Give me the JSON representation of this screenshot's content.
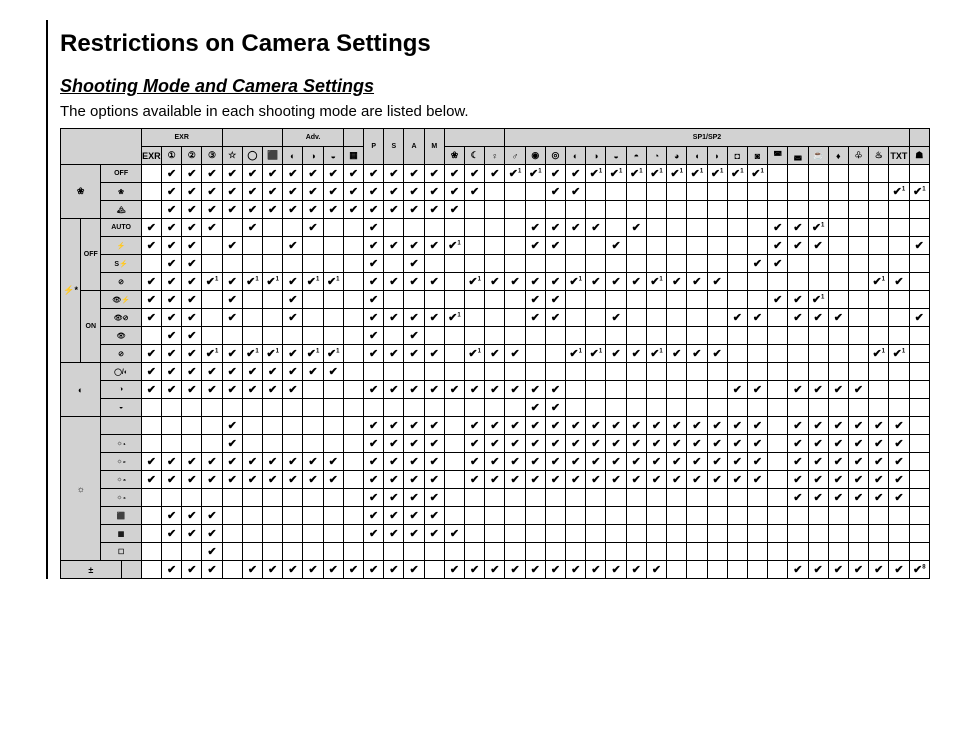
{
  "title": "Restrictions on Camera Settings",
  "subtitle": "Shooting Mode and Camera Settings",
  "intro": "The options available in each shooting mode are listed below.",
  "colors": {
    "grey": "#d2d2d2",
    "border": "#000000",
    "bg": "#ffffff"
  },
  "header_groups": [
    {
      "label": "EXR",
      "span": 4,
      "icon": true
    },
    {
      "label": "",
      "span": 3
    },
    {
      "label": "Adv.",
      "span": 3
    },
    {
      "label": "",
      "span": 1
    },
    {
      "label": "P",
      "span": 1
    },
    {
      "label": "S",
      "span": 1
    },
    {
      "label": "A",
      "span": 1
    },
    {
      "label": "M",
      "span": 1
    },
    {
      "label": "",
      "span": 3
    },
    {
      "label": "SP1/SP2",
      "span": 20
    },
    {
      "label": "",
      "span": 1
    }
  ],
  "modes": [
    "EXR",
    "①",
    "②",
    "③",
    "☆",
    "◯",
    "⬛",
    "◐",
    "◑",
    "◒",
    "▦",
    "P",
    "S",
    "A",
    "M",
    "❀",
    "☾",
    "♀",
    "♂",
    "◉",
    "◎",
    "◐",
    "◑",
    "◒",
    "◓",
    "◔",
    "◕",
    "◖",
    "◗",
    "◘",
    "◙",
    "◚",
    "◛",
    "☕",
    "♦",
    "♧",
    "♨",
    "TXT",
    "☗"
  ],
  "row_groups": [
    {
      "label_icon": "❀",
      "sub_icon": "",
      "rows": [
        {
          "sub": "OFF",
          "cells": [
            "",
            "v",
            "v",
            "v",
            "v",
            "v",
            "v",
            "v",
            "v",
            "v",
            "v",
            "v",
            "v",
            "v",
            "v",
            "v",
            "v",
            "v",
            "v1",
            "v1",
            "v",
            "v",
            "v1",
            "v1",
            "v1",
            "v1",
            "v1",
            "v1",
            "v1",
            "v1",
            "v1",
            "",
            "",
            "",
            "",
            "",
            "",
            "",
            ""
          ]
        },
        {
          "sub": "❀",
          "cells": [
            "",
            "v",
            "v",
            "v",
            "v",
            "v",
            "v",
            "v",
            "v",
            "v",
            "v",
            "v",
            "v",
            "v",
            "v",
            "v",
            "v",
            "",
            "",
            "",
            "v",
            "v",
            "",
            "",
            "",
            "",
            "",
            "",
            "",
            "",
            "",
            "",
            "",
            "",
            "",
            "",
            "",
            "v1",
            "v1"
          ]
        },
        {
          "sub": "🏔",
          "cells": [
            "",
            "v",
            "v",
            "v",
            "v",
            "v",
            "v",
            "v",
            "v",
            "v",
            "v",
            "v",
            "v",
            "v",
            "v",
            "v",
            "",
            "",
            "",
            "",
            "",
            "",
            "",
            "",
            "",
            "",
            "",
            "",
            "",
            "",
            "",
            "",
            "",
            "",
            "",
            "",
            "",
            "",
            ""
          ]
        }
      ]
    },
    {
      "label_icon": "⚡*",
      "sub_icon": "OFF",
      "rows": [
        {
          "sub": "AUTO",
          "cells": [
            "v",
            "v",
            "v",
            "v",
            "",
            "v",
            "",
            "",
            "v",
            "",
            "",
            "v",
            "",
            "",
            "",
            "",
            "",
            "",
            "",
            "v",
            "v",
            "v",
            "v",
            "",
            "v",
            "",
            "",
            "",
            "",
            "",
            "",
            "v",
            "v",
            "v1",
            "",
            "",
            "",
            "",
            ""
          ]
        },
        {
          "sub": "⚡",
          "cells": [
            "v",
            "v",
            "v",
            "",
            "v",
            "",
            "",
            "v",
            "",
            "",
            "",
            "v",
            "v",
            "v",
            "v",
            "v1",
            "",
            "",
            "",
            "v",
            "v",
            "",
            "",
            "v",
            "",
            "",
            "",
            "",
            "",
            "",
            "",
            "v",
            "v",
            "v",
            "",
            "",
            "",
            "",
            "v"
          ]
        },
        {
          "sub": "S⚡",
          "cells": [
            "",
            "v",
            "v",
            "",
            "",
            "",
            "",
            "",
            "",
            "",
            "",
            "v",
            "",
            "v",
            "",
            "",
            "",
            "",
            "",
            "",
            "",
            "",
            "",
            "",
            "",
            "",
            "",
            "",
            "",
            "",
            "v",
            "v",
            "",
            "",
            "",
            "",
            "",
            "",
            ""
          ]
        },
        {
          "sub": "⊘",
          "cells": [
            "v",
            "v",
            "v",
            "v1",
            "v",
            "v1",
            "v1",
            "v",
            "v1",
            "v1",
            "",
            "v",
            "v",
            "v",
            "v",
            "",
            "v1",
            "v",
            "v",
            "v",
            "v",
            "v1",
            "v",
            "v",
            "v",
            "v1",
            "v",
            "v",
            "v",
            "",
            "",
            "",
            "",
            "",
            "",
            "",
            "v1",
            "v",
            ""
          ]
        }
      ]
    },
    {
      "label_icon": "",
      "sub_icon": "ON",
      "rows": [
        {
          "sub": "👁⚡",
          "cells": [
            "v",
            "v",
            "v",
            "",
            "v",
            "",
            "",
            "v",
            "",
            "",
            "",
            "v",
            "",
            "",
            "",
            "",
            "",
            "",
            "",
            "v",
            "v",
            "",
            "",
            "",
            "",
            "",
            "",
            "",
            "",
            "",
            "",
            "v",
            "v",
            "v1",
            "",
            "",
            "",
            "",
            ""
          ]
        },
        {
          "sub": "👁⊘",
          "cells": [
            "v",
            "v",
            "v",
            "",
            "v",
            "",
            "",
            "v",
            "",
            "",
            "",
            "v",
            "v",
            "v",
            "v",
            "v1",
            "",
            "",
            "",
            "v",
            "v",
            "",
            "",
            "v",
            "",
            "",
            "",
            "",
            "",
            "v",
            "v",
            "",
            "v",
            "v",
            "v",
            "",
            "",
            "",
            "v"
          ]
        },
        {
          "sub": "👁",
          "cells": [
            "",
            "v",
            "v",
            "",
            "",
            "",
            "",
            "",
            "",
            "",
            "",
            "v",
            "",
            "v",
            "",
            "",
            "",
            "",
            "",
            "",
            "",
            "",
            "",
            "",
            "",
            "",
            "",
            "",
            "",
            "",
            "",
            "",
            "",
            "",
            "",
            "",
            "",
            "",
            ""
          ]
        },
        {
          "sub": "⊘",
          "cells": [
            "v",
            "v",
            "v",
            "v1",
            "v",
            "v1",
            "v1",
            "v",
            "v1",
            "v1",
            "",
            "v",
            "v",
            "v",
            "v",
            "",
            "v1",
            "v",
            "v",
            "",
            "",
            "v1",
            "v1",
            "v",
            "v",
            "v1",
            "v",
            "v",
            "v",
            "",
            "",
            "",
            "",
            "",
            "",
            "",
            "v1",
            "v1",
            ""
          ]
        }
      ]
    },
    {
      "label_icon": "◐",
      "rows": [
        {
          "sub": "◯/◐",
          "cells": [
            "v",
            "v",
            "v",
            "v",
            "v",
            "v",
            "v",
            "v",
            "v",
            "v",
            "",
            "",
            "",
            "",
            "",
            "",
            "",
            "",
            "",
            "",
            "",
            "",
            "",
            "",
            "",
            "",
            "",
            "",
            "",
            "",
            "",
            "",
            "",
            "",
            "",
            "",
            "",
            "",
            ""
          ]
        },
        {
          "sub": "◑",
          "cells": [
            "v",
            "v",
            "v",
            "v",
            "v",
            "v",
            "v",
            "v",
            "",
            "",
            "",
            "v",
            "v",
            "v",
            "v",
            "v",
            "v",
            "v",
            "v",
            "v",
            "v",
            "",
            "",
            "",
            "",
            "",
            "",
            "",
            "",
            "v",
            "v",
            "",
            "v",
            "v",
            "v",
            "v",
            "",
            "",
            ""
          ]
        },
        {
          "sub": "◒",
          "cells": [
            "",
            "",
            "",
            "",
            "",
            "",
            "",
            "",
            "",
            "",
            "",
            "",
            "",
            "",
            "",
            "",
            "",
            "",
            "",
            "v",
            "v",
            "",
            "",
            "",
            "",
            "",
            "",
            "",
            "",
            "",
            "",
            "",
            "",
            "",
            "",
            "",
            "",
            "",
            ""
          ]
        }
      ]
    },
    {
      "label_icon": "☼",
      "rows": [
        {
          "sub": "",
          "cells": [
            "",
            "",
            "",
            "",
            "v",
            "",
            "",
            "",
            "",
            "",
            "",
            "v",
            "v",
            "v",
            "v",
            "",
            "v",
            "v",
            "v",
            "v",
            "v",
            "v",
            "v",
            "v",
            "v",
            "v",
            "v",
            "v",
            "v",
            "v",
            "v",
            "",
            "v",
            "v",
            "v",
            "v",
            "v",
            "v",
            ""
          ]
        },
        {
          "sub": "☼₁",
          "cells": [
            "",
            "",
            "",
            "",
            "v",
            "",
            "",
            "",
            "",
            "",
            "",
            "v",
            "v",
            "v",
            "v",
            "",
            "v",
            "v",
            "v",
            "v",
            "v",
            "v",
            "v",
            "v",
            "v",
            "v",
            "v",
            "v",
            "v",
            "v",
            "v",
            "",
            "v",
            "v",
            "v",
            "v",
            "v",
            "v",
            ""
          ]
        },
        {
          "sub": "☼₂",
          "cells": [
            "v",
            "v",
            "v",
            "v",
            "v",
            "v",
            "v",
            "v",
            "v",
            "v",
            "",
            "v",
            "v",
            "v",
            "v",
            "",
            "v",
            "v",
            "v",
            "v",
            "v",
            "v",
            "v",
            "v",
            "v",
            "v",
            "v",
            "v",
            "v",
            "v",
            "v",
            "",
            "v",
            "v",
            "v",
            "v",
            "v",
            "v",
            ""
          ]
        },
        {
          "sub": "☼₃",
          "cells": [
            "v",
            "v",
            "v",
            "v",
            "v",
            "v",
            "v",
            "v",
            "v",
            "v",
            "",
            "v",
            "v",
            "v",
            "v",
            "",
            "v",
            "v",
            "v",
            "v",
            "v",
            "v",
            "v",
            "v",
            "v",
            "v",
            "v",
            "v",
            "v",
            "v",
            "v",
            "",
            "v",
            "v",
            "v",
            "v",
            "v",
            "v",
            ""
          ]
        },
        {
          "sub": "☼₄",
          "cells": [
            "",
            "",
            "",
            "",
            "",
            "",
            "",
            "",
            "",
            "",
            "",
            "v",
            "v",
            "v",
            "v",
            "",
            "",
            "",
            "",
            "",
            "",
            "",
            "",
            "",
            "",
            "",
            "",
            "",
            "",
            "",
            "",
            "",
            "v",
            "v",
            "v",
            "v",
            "v",
            "v",
            ""
          ]
        },
        {
          "sub": "⬛",
          "cells": [
            "",
            "v",
            "v",
            "v",
            "",
            "",
            "",
            "",
            "",
            "",
            "",
            "v",
            "v",
            "v",
            "v",
            "",
            "",
            "",
            "",
            "",
            "",
            "",
            "",
            "",
            "",
            "",
            "",
            "",
            "",
            "",
            "",
            "",
            "",
            "",
            "",
            "",
            "",
            "",
            ""
          ]
        },
        {
          "sub": "▦",
          "cells": [
            "",
            "v",
            "v",
            "v",
            "",
            "",
            "",
            "",
            "",
            "",
            "",
            "v",
            "v",
            "v",
            "v",
            "v",
            "",
            "",
            "",
            "",
            "",
            "",
            "",
            "",
            "",
            "",
            "",
            "",
            "",
            "",
            "",
            "",
            "",
            "",
            "",
            "",
            "",
            "",
            ""
          ]
        },
        {
          "sub": "☐",
          "cells": [
            "",
            "",
            "",
            "v",
            "",
            "",
            "",
            "",
            "",
            "",
            "",
            "",
            "",
            "",
            "",
            "",
            "",
            "",
            "",
            "",
            "",
            "",
            "",
            "",
            "",
            "",
            "",
            "",
            "",
            "",
            "",
            "",
            "",
            "",
            "",
            "",
            "",
            "",
            ""
          ]
        }
      ]
    },
    {
      "label_icon": "±",
      "rows": [
        {
          "sub": "",
          "cells": [
            "",
            "v",
            "v",
            "v",
            "",
            "v",
            "v",
            "v",
            "v",
            "v",
            "v",
            "v",
            "v",
            "v",
            "",
            "v",
            "v",
            "v",
            "v",
            "v",
            "v",
            "v",
            "v",
            "v",
            "v",
            "v",
            "",
            "",
            "",
            "",
            "",
            "",
            "v",
            "v",
            "v",
            "v",
            "v",
            "v",
            "v8"
          ]
        }
      ]
    }
  ]
}
